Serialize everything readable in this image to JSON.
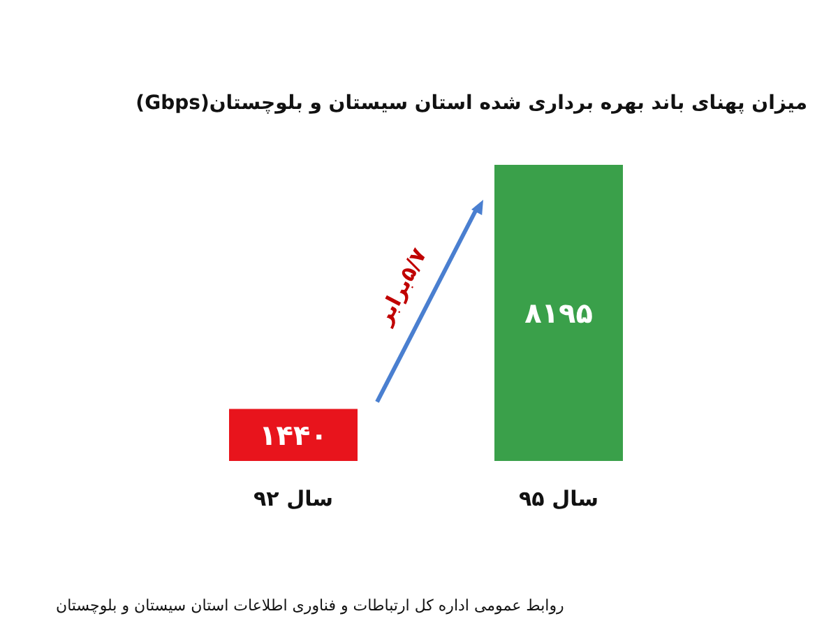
{
  "chart_data": {
    "type": "bar",
    "title": "میزان پهنای باند بهره برداری شده استان سیستان و بلوچستان(Gbps)",
    "categories": [
      "سال ۹۲",
      "سال ۹۵"
    ],
    "values": [
      1440,
      8195
    ],
    "value_labels": [
      "۱۴۴۰",
      "۸۱۹۵"
    ],
    "colors": [
      "#e8141c",
      "#3aa04a"
    ],
    "annotations": [
      "۵/۷برابر",
      "روابط عمومی اداره کل ارتباطات و فناوری اطلاعات استان سیستان و بلوچستان"
    ]
  }
}
